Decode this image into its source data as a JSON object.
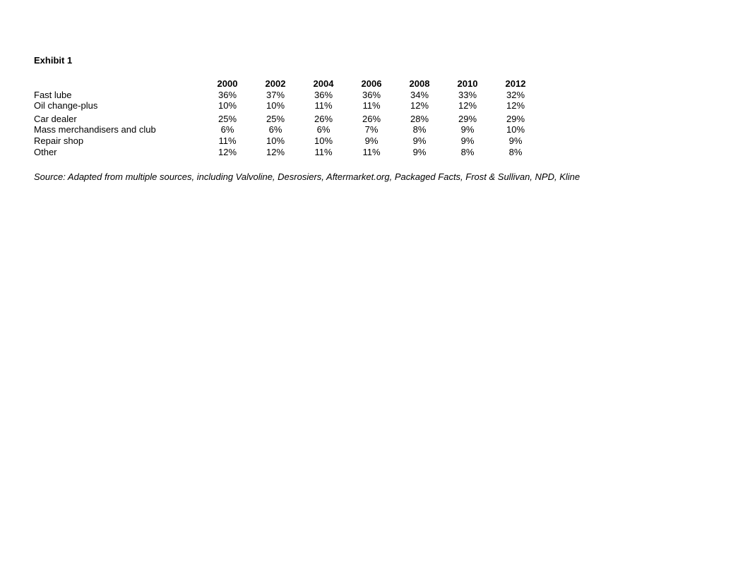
{
  "title": "Exhibit 1",
  "table": {
    "type": "table",
    "columns": [
      "2000",
      "2002",
      "2004",
      "2006",
      "2008",
      "2010",
      "2012"
    ],
    "rows": [
      {
        "label": "Fast lube",
        "values": [
          "36%",
          "37%",
          "36%",
          "36%",
          "34%",
          "33%",
          "32%"
        ]
      },
      {
        "label": "Oil change-plus",
        "values": [
          "10%",
          "10%",
          "11%",
          "11%",
          "12%",
          "12%",
          "12%"
        ]
      },
      {
        "label": "Car dealer",
        "values": [
          "25%",
          "25%",
          "26%",
          "26%",
          "28%",
          "29%",
          "29%"
        ]
      },
      {
        "label": "Mass merchandisers and club",
        "values": [
          "6%",
          "6%",
          "6%",
          "7%",
          "8%",
          "9%",
          "10%"
        ]
      },
      {
        "label": "Repair shop",
        "values": [
          "11%",
          "10%",
          "10%",
          "9%",
          "9%",
          "9%",
          "9%"
        ]
      },
      {
        "label": "Other",
        "values": [
          "12%",
          "12%",
          "11%",
          "11%",
          "9%",
          "8%",
          "8%"
        ]
      }
    ],
    "label_col_width": 240,
    "data_col_width": 68,
    "font_size": 13,
    "header_fontweight": "bold",
    "text_color": "#000000",
    "background_color": "#ffffff",
    "spacer_after_rows": [
      1
    ]
  },
  "source": "Source: Adapted from multiple sources, including Valvoline, Desrosiers, Aftermarket.org, Packaged Facts, Frost & Sullivan, NPD, Kline"
}
